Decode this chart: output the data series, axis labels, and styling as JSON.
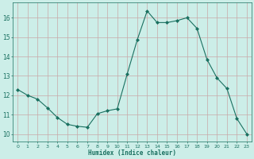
{
  "x": [
    0,
    1,
    2,
    3,
    4,
    5,
    6,
    7,
    8,
    9,
    10,
    11,
    12,
    13,
    14,
    15,
    16,
    17,
    18,
    19,
    20,
    21,
    22,
    23
  ],
  "y": [
    12.3,
    12.0,
    11.8,
    11.35,
    10.85,
    10.5,
    10.4,
    10.35,
    11.05,
    11.2,
    11.3,
    13.1,
    14.85,
    16.35,
    15.75,
    15.75,
    15.85,
    16.0,
    15.45,
    13.85,
    12.9,
    12.35,
    10.8,
    10.0
  ],
  "xlabel": "Humidex (Indice chaleur)",
  "xlim": [
    -0.5,
    23.5
  ],
  "ylim": [
    9.6,
    16.8
  ],
  "yticks": [
    10,
    11,
    12,
    13,
    14,
    15,
    16
  ],
  "xticks": [
    0,
    1,
    2,
    3,
    4,
    5,
    6,
    7,
    8,
    9,
    10,
    11,
    12,
    13,
    14,
    15,
    16,
    17,
    18,
    19,
    20,
    21,
    22,
    23
  ],
  "line_color": "#1a7060",
  "marker": "D",
  "marker_size": 2.0,
  "bg_color": "#cceee8",
  "grid_major_color": "#c8a8a8",
  "grid_minor_color": "#c8a8a8",
  "tick_color": "#1a7060",
  "label_color": "#1a7060"
}
